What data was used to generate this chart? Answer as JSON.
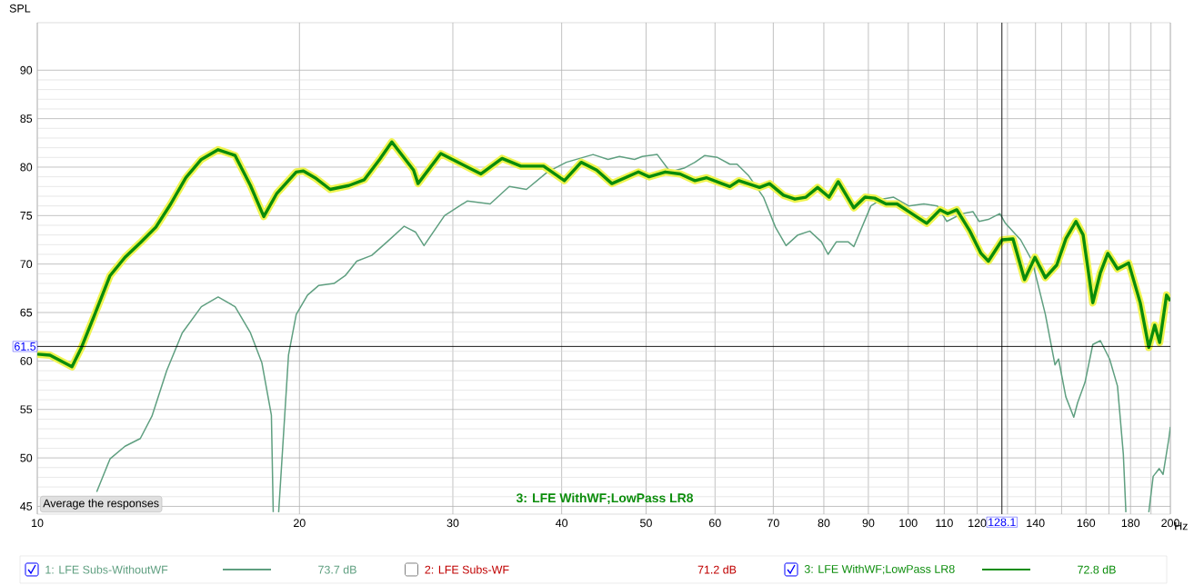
{
  "chart_data": {
    "type": "line",
    "ylabel": "SPL",
    "xlabel": "Hz",
    "log": "x",
    "grid": true,
    "legend": "bottom",
    "xlim": [
      10,
      200
    ],
    "ylim": [
      44.2,
      94.9
    ],
    "xticks": [
      10,
      20,
      30,
      40,
      50,
      60,
      70,
      80,
      90,
      100,
      110,
      120,
      {
        "value": 130,
        "label": null
      },
      140,
      {
        "value": 150,
        "label": null
      },
      160,
      {
        "value": 170,
        "label": null
      },
      180,
      {
        "value": 190,
        "label": null
      },
      200
    ],
    "yticks": [
      45,
      50,
      55,
      60,
      65,
      70,
      75,
      80,
      85,
      90
    ],
    "ref_lines": [
      {
        "axis": "y",
        "value": 61.5,
        "label": "61.5",
        "color": "#000000"
      },
      {
        "axis": "x",
        "value": 128.1,
        "label": "128.1",
        "color": "#000000"
      }
    ],
    "annotations": [
      "3: LFE WithWF;LowPass LR8",
      "Average the responses",
      "73.7 dB",
      "2: LFE Subs-WF",
      "71.2 dB",
      "72.8 dB"
    ],
    "series": [
      {
        "name": "1: LFE Subs-WithoutWF",
        "color": "#5f9f80",
        "x": [
          11.7,
          12.12,
          12.61,
          13.13,
          13.54,
          14.08,
          14.67,
          15.43,
          16.13,
          16.87,
          17.57,
          18.11,
          18.57,
          18.66,
          18.8,
          18.93,
          19.43,
          19.83,
          20.43,
          21.05,
          21.91,
          22.57,
          23.27,
          24.21,
          25.22,
          26.38,
          27.18,
          27.8,
          29.35,
          31.16,
          33.11,
          34.83,
          36.45,
          38.53,
          40.5,
          43.46,
          45.22,
          46.6,
          48.5,
          49.5,
          51.5,
          53.3,
          55.3,
          56.9,
          58.4,
          60.4,
          62.4,
          63.6,
          65.6,
          68.2,
          70.4,
          72.4,
          74.7,
          77.1,
          79.5,
          80.9,
          82.7,
          85.3,
          86.6,
          90.6,
          93.3,
          96.2,
          100.1,
          104.2,
          108.0,
          110.7,
          115.3,
          118.7,
          120.6,
          123.6,
          127.4,
          129.3,
          134.6,
          138.8,
          143.7,
          147.4,
          148.8,
          151.7,
          154.9,
          156.5,
          159.6,
          162.9,
          166.2,
          170.3,
          173.9,
          176.6,
          177.8,
          182,
          188.9,
          191.1,
          194.2,
          196.2,
          199.2,
          200
        ],
        "values": [
          46.5,
          49.9,
          51.2,
          52.0,
          54.3,
          59.0,
          62.9,
          65.6,
          66.6,
          65.6,
          62.9,
          59.8,
          54.4,
          44.4,
          null,
          44.4,
          60.6,
          64.8,
          66.8,
          67.8,
          68.0,
          68.8,
          70.3,
          70.9,
          72.3,
          73.9,
          73.3,
          71.9,
          75.0,
          76.5,
          76.2,
          78.0,
          77.7,
          79.5,
          80.5,
          81.3,
          80.8,
          81.1,
          80.8,
          81.1,
          81.3,
          79.5,
          79.9,
          80.5,
          81.2,
          81.0,
          80.3,
          80.3,
          79.1,
          76.9,
          73.8,
          71.9,
          73.0,
          73.4,
          72.3,
          71.0,
          72.3,
          72.3,
          71.8,
          76.0,
          76.7,
          76.9,
          76.0,
          76.2,
          76.0,
          74.4,
          75.2,
          75.4,
          74.4,
          74.6,
          75.2,
          74.2,
          72.5,
          70.3,
          64.8,
          59.6,
          60.2,
          56.3,
          54.2,
          55.7,
          57.8,
          61.7,
          62.1,
          60.2,
          57.4,
          50.4,
          44.4,
          null,
          44.4,
          48.1,
          48.9,
          48.3,
          52.0,
          53.2
        ]
      },
      {
        "name": "3: LFE WithWF;LowPass LR8",
        "color": "#0a8c0a",
        "x": [
          10,
          10.34,
          10.96,
          11.24,
          11.64,
          12.12,
          12.61,
          13.13,
          13.68,
          14.23,
          14.81,
          15.43,
          16.13,
          16.87,
          17.57,
          18.2,
          18.84,
          19.83,
          20.21,
          20.84,
          21.69,
          22.79,
          23.74,
          24.72,
          25.53,
          27.04,
          27.36,
          29.06,
          32.32,
          34.17,
          35.91,
          38.14,
          40.29,
          42.12,
          43.88,
          45.68,
          49.0,
          50.4,
          52.6,
          54.7,
          56.9,
          58.7,
          61.1,
          62.4,
          63.9,
          67.5,
          69.3,
          71.9,
          74.1,
          76.3,
          78.7,
          81.1,
          83.1,
          86.6,
          89.2,
          91.5,
          94.3,
          97.1,
          100.2,
          105,
          108.8,
          111,
          113.7,
          117.7,
          121.2,
          123.6,
          128.2,
          131.9,
          136,
          139.8,
          143.7,
          148.1,
          151.7,
          155.8,
          158.8,
          162.9,
          166.2,
          169.5,
          173.9,
          179.1,
          184.7,
          188.9,
          191.9,
          194.4,
          198,
          200
        ],
        "values": [
          60.7,
          60.6,
          59.4,
          61.4,
          64.8,
          68.8,
          70.7,
          72.2,
          73.8,
          76.2,
          78.9,
          80.8,
          81.8,
          81.2,
          78.1,
          74.9,
          77.3,
          79.5,
          79.6,
          78.9,
          77.7,
          78.1,
          78.7,
          80.8,
          82.6,
          79.7,
          78.3,
          81.4,
          79.3,
          80.9,
          80.1,
          80.1,
          78.6,
          80.5,
          79.7,
          78.3,
          79.5,
          79.0,
          79.5,
          79.3,
          78.6,
          78.9,
          78.3,
          78.0,
          78.6,
          77.9,
          78.3,
          77.1,
          76.7,
          76.9,
          77.9,
          76.9,
          78.5,
          75.8,
          76.9,
          76.8,
          76.2,
          76.2,
          75.4,
          74.2,
          75.6,
          75.2,
          75.6,
          73.4,
          71.1,
          70.3,
          72.5,
          72.6,
          68.4,
          70.7,
          68.6,
          69.9,
          72.6,
          74.4,
          73.0,
          66.0,
          69.1,
          71.1,
          69.5,
          70.1,
          66.0,
          61.4,
          63.7,
          61.9,
          66.8,
          66.2
        ]
      }
    ]
  }
}
